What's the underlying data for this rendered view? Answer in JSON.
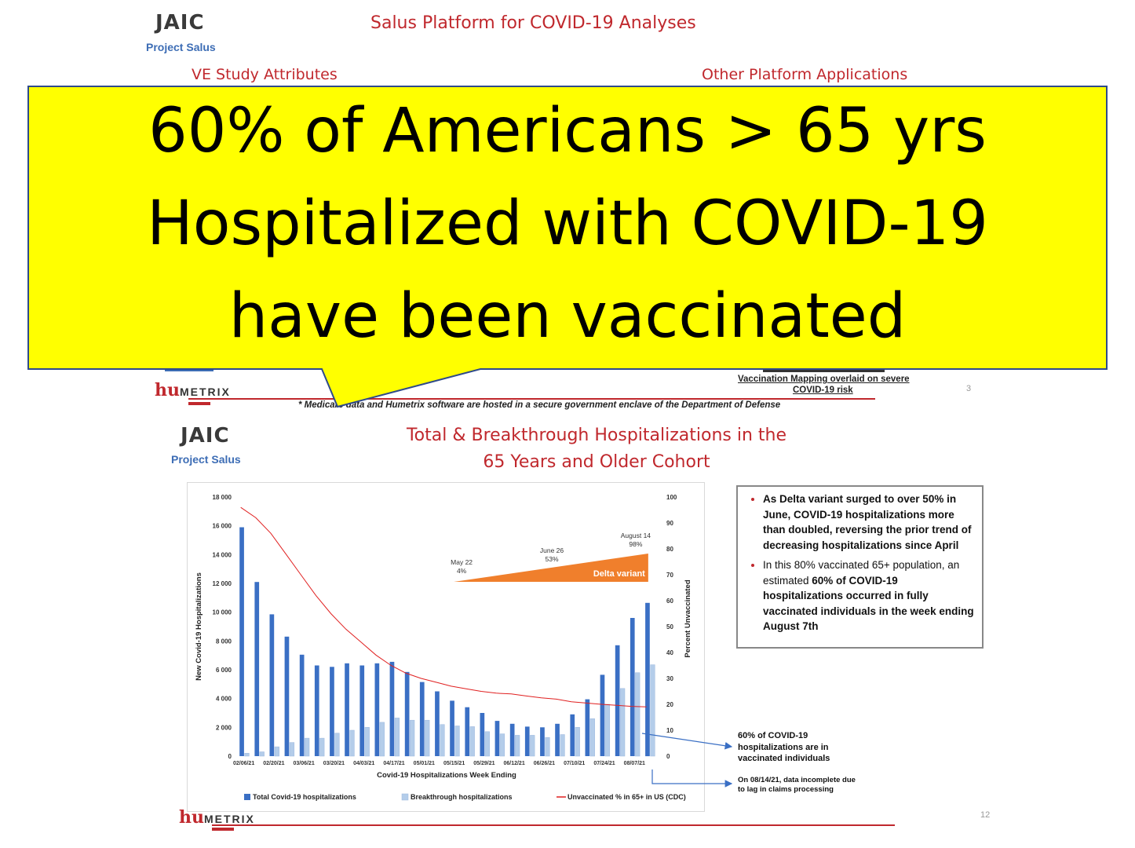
{
  "top_slide": {
    "logo": "JAIC",
    "logo_sub": "Project Salus",
    "title": "Salus Platform for COVID-19 Analyses",
    "left_heading": "VE Study Attributes",
    "right_heading": "Other Platform Applications",
    "vaccination_mapping": "Vaccination Mapping overlaid on severe",
    "vaccination_mapping_2": "COVID-19  risk",
    "page_number": "3",
    "footnote": "* Medicare data and Humetrix software are hosted in a secure government enclave of the Department of Defense",
    "humetrix_hu": "hu",
    "humetrix_rest": "METRIX"
  },
  "callout": {
    "line1": "60% of Americans > 65 yrs",
    "line2": "Hospitalized with COVID-19",
    "line3": "have been vaccinated",
    "background": "#ffff00"
  },
  "bottom_slide": {
    "logo": "JAIC",
    "logo_sub": "Project Salus",
    "title_line1": "Total & Breakthrough Hospitalizations in the",
    "title_line2": "65 Years and Older Cohort",
    "page_number": "12",
    "humetrix_hu": "hu",
    "humetrix_rest": "METRIX",
    "notes": [
      {
        "text": "As Delta variant surged to over 50% in June, COVID-19 hospitalizations more than doubled, reversing the prior trend of decreasing hospitalizations since April"
      },
      {
        "pre": "In this 80% vaccinated 65+ population, an estimated ",
        "bold": "60% of COVID-19 hospitalizations occurred in fully vaccinated individuals in the week ending August 7th"
      }
    ],
    "annotation_1": "60% of COVID-19 hospitalizations are in vaccinated individuals",
    "annotation_2": "On 08/14/21, data incomplete due to lag in claims processing"
  },
  "chart_data": {
    "type": "bar",
    "xlabel": "Covid-19 Hospitalizations Week Ending",
    "ylabel": "New Covid-19 Hospitalizations",
    "y2label": "Percent Unvaccinated",
    "ylim": [
      0,
      18000
    ],
    "y2lim": [
      0,
      100
    ],
    "y_ticks": [
      "0",
      "2 000",
      "4 000",
      "6 000",
      "8 000",
      "10 000",
      "12 000",
      "14 000",
      "16 000",
      "18 000"
    ],
    "y2_ticks": [
      "0",
      "10",
      "20",
      "30",
      "40",
      "50",
      "60",
      "70",
      "80",
      "90",
      "100"
    ],
    "tick_labels": [
      "02/06/21",
      "02/20/21",
      "03/06/21",
      "03/20/21",
      "04/03/21",
      "04/17/21",
      "05/01/21",
      "05/15/21",
      "05/29/21",
      "06/12/21",
      "06/26/21",
      "07/10/21",
      "07/24/21",
      "08/07/21"
    ],
    "weeks": 28,
    "series": [
      {
        "name": "Total Covid-19 hospitalizations",
        "color": "#3a6fc4",
        "values": [
          15900,
          12100,
          9850,
          8300,
          7050,
          6300,
          6200,
          6450,
          6300,
          6450,
          6550,
          5850,
          5150,
          4500,
          3850,
          3400,
          3000,
          2450,
          2250,
          2050,
          2000,
          2250,
          2900,
          3950,
          5650,
          7700,
          9600,
          10650
        ]
      },
      {
        "name": "Breakthrough hospitalizations",
        "color": "#b4cdea",
        "values": [
          200,
          300,
          650,
          950,
          1250,
          1250,
          1600,
          1800,
          2000,
          2350,
          2650,
          2500,
          2500,
          2200,
          2100,
          2050,
          1700,
          1550,
          1450,
          1450,
          1300,
          1500,
          2000,
          2600,
          3600,
          4700,
          5800,
          6350
        ]
      },
      {
        "name": "Unvaccinated % in 65+ in US (CDC)",
        "color": "#e02020",
        "axis": "secondary",
        "values": [
          96,
          92,
          86,
          78,
          70,
          62,
          55,
          49,
          44,
          39,
          35,
          32,
          30,
          28.5,
          27,
          26,
          25,
          24.3,
          24,
          23.2,
          22.5,
          22,
          21,
          20.5,
          20,
          19.6,
          19.2,
          19
        ]
      }
    ],
    "delta_variant": {
      "label": "Delta variant",
      "color": "#f07f2c",
      "points": [
        {
          "date": "May 22",
          "value": "4%"
        },
        {
          "date": "June 26",
          "value": "53%"
        },
        {
          "date": "August 14",
          "value": "98%"
        }
      ]
    }
  }
}
